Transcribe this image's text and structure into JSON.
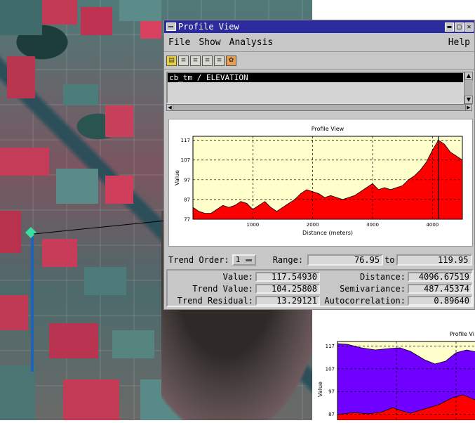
{
  "window": {
    "title": "Profile View",
    "menu": [
      "File",
      "Show",
      "Analysis"
    ],
    "help": "Help",
    "layer_item": "cb_tm / ELEVATION"
  },
  "trend": {
    "order_label": "Trend Order:",
    "order_value": "1",
    "range_label": "Range:",
    "range_min": "76.95",
    "to_label": "to",
    "range_max": "119.95"
  },
  "stats": {
    "value_label": "Value:",
    "value": "117.54930",
    "distance_label": "Distance:",
    "distance": "4096.67519",
    "trend_value_label": "Trend Value:",
    "trend_value": "104.25808",
    "semivariance_label": "Semivariance:",
    "semivariance": "487.45374",
    "trend_residual_label": "Trend Residual:",
    "trend_residual": "13.29121",
    "autocorrelation_label": "Autocorrelation:",
    "autocorrelation": "0.89640"
  },
  "chart_data": [
    {
      "type": "area",
      "title": "Profile View",
      "xlabel": "Distance (meters)",
      "ylabel": "Value",
      "xlim": [
        0,
        4500
      ],
      "ylim": [
        77,
        119
      ],
      "x_ticks": [
        1000,
        2000,
        3000,
        4000
      ],
      "y_ticks": [
        77,
        87,
        97,
        107,
        117
      ],
      "grid": true,
      "colors": {
        "fill": "#ff0000",
        "background": "#ffffcc",
        "cursor": "#000000"
      },
      "cursor_x": 4096.67519,
      "x": [
        0,
        100,
        200,
        300,
        400,
        500,
        600,
        700,
        800,
        900,
        1000,
        1100,
        1200,
        1300,
        1400,
        1500,
        1600,
        1700,
        1800,
        1900,
        2000,
        2100,
        2200,
        2300,
        2400,
        2500,
        2600,
        2700,
        2800,
        2900,
        3000,
        3100,
        3200,
        3300,
        3400,
        3500,
        3600,
        3700,
        3800,
        3900,
        4000,
        4100,
        4200,
        4300,
        4400,
        4500
      ],
      "values": [
        83,
        81,
        80,
        80,
        82,
        84,
        83,
        84,
        86,
        85,
        82,
        84,
        86,
        83,
        81,
        83,
        85,
        87,
        90,
        92,
        91,
        90,
        88,
        89,
        88,
        87,
        88,
        89,
        91,
        93,
        95,
        92,
        93,
        92,
        93,
        94,
        97,
        99,
        102,
        106,
        112,
        117,
        115,
        111,
        109,
        107
      ]
    },
    {
      "type": "area",
      "title": "Profile Vi",
      "ylabel": "Value",
      "ylim": [
        77,
        119
      ],
      "y_ticks": [
        87,
        97,
        107,
        117
      ],
      "grid": true,
      "colors": {
        "upper": "#7000ff",
        "lower": "#ff0000",
        "background": "#ffffcc"
      }
    }
  ]
}
